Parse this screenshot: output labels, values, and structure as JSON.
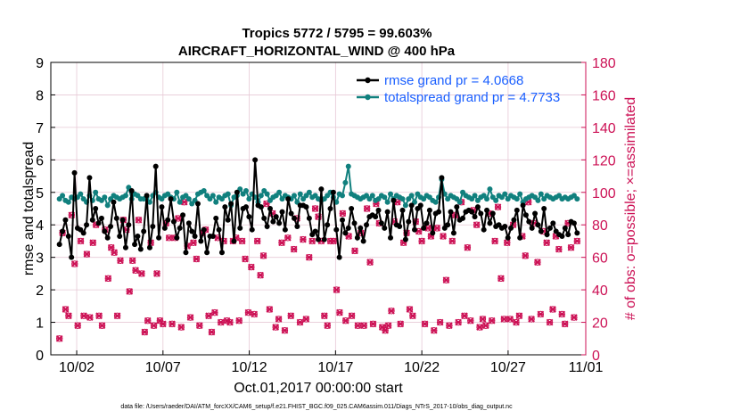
{
  "chart_data": {
    "type": "line",
    "title": "Tropics 5772 / 5795 = 99.603%",
    "subtitle": "AIRCRAFT_HORIZONTAL_WIND @ 400 hPa",
    "xlabel": "Oct.01,2017 00:00:00 start",
    "ylabel_left": "rmse and totalspread",
    "ylabel_right": "# of obs: o=possible; ×=assimilated",
    "footnote": "data file: /Users/raeder/DAI/ATM_forcXX/CAM6_setup/f.e21.FHIST_BGC.f09_025.CAM6assim.011/Diags_NTrS_2017-10/obs_diag_output.nc",
    "xlim": [
      0.5,
      31.5
    ],
    "ylim_left": [
      0,
      9
    ],
    "ylim_right": [
      0,
      180
    ],
    "x_ticks": [
      2,
      7,
      12,
      17,
      22,
      27,
      32
    ],
    "x_tick_labels": [
      "10/02",
      "10/07",
      "10/12",
      "10/17",
      "10/22",
      "10/27",
      "11/01"
    ],
    "y_ticks_left": [
      "0",
      "1",
      "2",
      "3",
      "4",
      "5",
      "6",
      "7",
      "8",
      "9"
    ],
    "y_ticks_right": [
      "0",
      "20",
      "40",
      "60",
      "80",
      "100",
      "120",
      "140",
      "160",
      "180"
    ],
    "series": [
      {
        "name": "rmse",
        "legend": "rmse grand pr = 4.0668",
        "color": "#000000",
        "axis": "left",
        "values": [
          3.4,
          3.8,
          4.15,
          3.65,
          3.0,
          5.6,
          3.9,
          3.85,
          3.75,
          4.0,
          5.45,
          4.15,
          4.5,
          4.05,
          4.2,
          3.8,
          3.6,
          3.95,
          4.7,
          4.2,
          3.65,
          4.15,
          3.3,
          4.0,
          5.05,
          3.4,
          3.65,
          3.25,
          3.8,
          4.9,
          3.3,
          3.95,
          5.8,
          3.6,
          4.55,
          3.9,
          4.15,
          4.8,
          4.1,
          3.6,
          3.9,
          4.3,
          3.15,
          4.05,
          3.8,
          3.65,
          4.65,
          3.5,
          3.85,
          3.15,
          3.65,
          3.65,
          4.2,
          3.85,
          3.15,
          4.55,
          4.15,
          4.65,
          3.5,
          5.0,
          3.9,
          4.5,
          4.55,
          4.25,
          3.85,
          6.0,
          4.6,
          4.55,
          4.2,
          3.95,
          4.5,
          4.1,
          4.25,
          4.05,
          4.4,
          3.85,
          4.8,
          4.35,
          4.2,
          3.95,
          4.6,
          4.6,
          4.55,
          4.2,
          3.7,
          3.8,
          3.55,
          5.1,
          3.55,
          4.0,
          4.5,
          5.0,
          3.85,
          3.0,
          4.15,
          3.75,
          3.9,
          4.5,
          4.05,
          3.6,
          3.9,
          3.5,
          4.0,
          4.25,
          4.3,
          4.25,
          4.45,
          4.05,
          3.9,
          4.4,
          3.6,
          4.75,
          4.0,
          3.95,
          4.45,
          3.55,
          4.1,
          4.6,
          3.85,
          4.5,
          4.6,
          3.9,
          4.05,
          4.45,
          3.75,
          4.35,
          4.4,
          5.45,
          3.9,
          4.0,
          4.4,
          3.75,
          4.55,
          4.15,
          4.2,
          4.4,
          4.45,
          4.4,
          4.25,
          4.55,
          4.35,
          3.85,
          4.45,
          4.05,
          4.35,
          3.95,
          4.0,
          3.9,
          3.95,
          3.6,
          3.9,
          4.15,
          4.45,
          3.6,
          4.6,
          4.3,
          4.1,
          3.9,
          4.35,
          4.0,
          3.8,
          4.5,
          3.7,
          3.9,
          4.05,
          3.8,
          3.7,
          3.65,
          3.9,
          3.7,
          4.1,
          4.05,
          3.75
        ]
      },
      {
        "name": "totalspread",
        "legend": "totalspread grand pr = 4.7733",
        "color": "#11807e",
        "axis": "left",
        "values": [
          4.8,
          4.9,
          4.75,
          4.7,
          4.85,
          4.8,
          4.85,
          4.95,
          4.8,
          4.7,
          4.9,
          4.75,
          5.0,
          4.8,
          4.75,
          4.85,
          4.6,
          4.8,
          4.9,
          4.85,
          4.8,
          4.85,
          4.9,
          5.15,
          4.8,
          4.95,
          4.9,
          4.8,
          4.8,
          4.85,
          4.7,
          4.9,
          5.0,
          4.85,
          4.8,
          4.9,
          4.95,
          4.85,
          4.8,
          5.0,
          4.7,
          4.85,
          4.9,
          4.8,
          4.65,
          4.75,
          4.95,
          5.0,
          5.05,
          4.9,
          4.8,
          4.9,
          4.7,
          4.85,
          4.8,
          4.9,
          4.95,
          4.6,
          4.85,
          4.9,
          5.1,
          4.95,
          5.05,
          4.8,
          4.95,
          4.85,
          4.7,
          4.9,
          5.05,
          4.95,
          4.75,
          4.85,
          4.9,
          5.0,
          4.8,
          4.9,
          4.85,
          4.8,
          4.9,
          4.7,
          4.95,
          4.8,
          4.9,
          5.0,
          4.85,
          4.9,
          4.8,
          4.75,
          4.8,
          4.9,
          5.0,
          4.85,
          4.7,
          4.95,
          4.9,
          5.3,
          5.8,
          4.95,
          4.9,
          4.85,
          4.8,
          4.85,
          4.9,
          4.8,
          4.9,
          4.75,
          4.8,
          4.9,
          4.85,
          4.7,
          4.95,
          4.8,
          4.9,
          4.85,
          4.8,
          4.6,
          4.8,
          4.9,
          4.7,
          4.95,
          4.85,
          4.8,
          4.9,
          4.85,
          4.75,
          4.7,
          4.85,
          5.4,
          4.95,
          4.8,
          4.9,
          4.85,
          4.8,
          4.7,
          5.0,
          4.9,
          4.85,
          4.8,
          4.9,
          4.75,
          4.85,
          4.9,
          4.8,
          5.1,
          4.85,
          4.75,
          4.9,
          4.85,
          4.95,
          4.8,
          4.9,
          4.85,
          4.8,
          4.95,
          4.7,
          4.8,
          4.85,
          4.9,
          4.85,
          4.75,
          4.95,
          4.8,
          4.9,
          4.85,
          4.8,
          4.85,
          4.9,
          4.8,
          4.85,
          4.8,
          4.85,
          4.9,
          4.8
        ]
      },
      {
        "name": "obs_possible",
        "color": "#cc1155",
        "axis": "right",
        "values": [
          10,
          75,
          28,
          24,
          86,
          56,
          18,
          70,
          24,
          62,
          23,
          69,
          80,
          24,
          18,
          77,
          47,
          66,
          63,
          24,
          58,
          83,
          77,
          39,
          58,
          52,
          83,
          50,
          14,
          21,
          69,
          18,
          50,
          21,
          19,
          81,
          72,
          19,
          72,
          84,
          17,
          94,
          67,
          23,
          69,
          59,
          18,
          75,
          77,
          24,
          14,
          26,
          72,
          20,
          70,
          21,
          20,
          70,
          72,
          21,
          70,
          59,
          26,
          54,
          25,
          70,
          49,
          61,
          93,
          28,
          87,
          17,
          22,
          69,
          15,
          72,
          24,
          65,
          84,
          20,
          71,
          22,
          60,
          70,
          90,
          85,
          70,
          24,
          18,
          70,
          70,
          40,
          26,
          87,
          21,
          73,
          24,
          64,
          18,
          75,
          18,
          90,
          57,
          19,
          93,
          81,
          17,
          15,
          18,
          27,
          82,
          94,
          19,
          69,
          75,
          28,
          24,
          82,
          76,
          70,
          19,
          78,
          73,
          15,
          78,
          20,
          73,
          46,
          18,
          70,
          86,
          20,
          94,
          24,
          66,
          21,
          89,
          80,
          17,
          22,
          18,
          87,
          21,
          70,
          91,
          47,
          22,
          69,
          22,
          80,
          20,
          24,
          73,
          61,
          94,
          22,
          81,
          57,
          25,
          76,
          69,
          20,
          28,
          73,
          65,
          25,
          19,
          81,
          66,
          23,
          70
        ]
      },
      {
        "name": "obs_assimilated",
        "color": "#cc1155",
        "axis": "right",
        "values": [
          10,
          75,
          28,
          24,
          86,
          56,
          18,
          70,
          24,
          62,
          23,
          69,
          80,
          24,
          18,
          77,
          47,
          66,
          63,
          24,
          58,
          83,
          77,
          39,
          58,
          52,
          83,
          50,
          14,
          21,
          69,
          18,
          50,
          21,
          19,
          81,
          72,
          19,
          72,
          84,
          17,
          94,
          67,
          23,
          69,
          59,
          18,
          75,
          77,
          24,
          14,
          26,
          72,
          20,
          70,
          21,
          20,
          70,
          72,
          21,
          70,
          59,
          26,
          54,
          25,
          70,
          49,
          61,
          93,
          28,
          87,
          17,
          22,
          69,
          15,
          72,
          24,
          65,
          84,
          20,
          71,
          22,
          60,
          70,
          90,
          85,
          70,
          24,
          18,
          70,
          70,
          40,
          26,
          87,
          21,
          73,
          24,
          64,
          18,
          75,
          18,
          90,
          57,
          19,
          93,
          81,
          17,
          15,
          18,
          27,
          82,
          94,
          19,
          69,
          75,
          28,
          24,
          82,
          76,
          70,
          19,
          78,
          73,
          15,
          78,
          20,
          73,
          46,
          18,
          70,
          86,
          20,
          94,
          24,
          66,
          21,
          89,
          80,
          17,
          22,
          18,
          87,
          21,
          70,
          91,
          47,
          22,
          69,
          22,
          80,
          20,
          24,
          73,
          61,
          94,
          22,
          81,
          57,
          25,
          76,
          69,
          20,
          28,
          73,
          65,
          25,
          19,
          81,
          66,
          23,
          70
        ]
      }
    ],
    "colors": {
      "left_axis": "#000000",
      "right_axis": "#cc1155",
      "grid": "#e7c9d6"
    }
  }
}
